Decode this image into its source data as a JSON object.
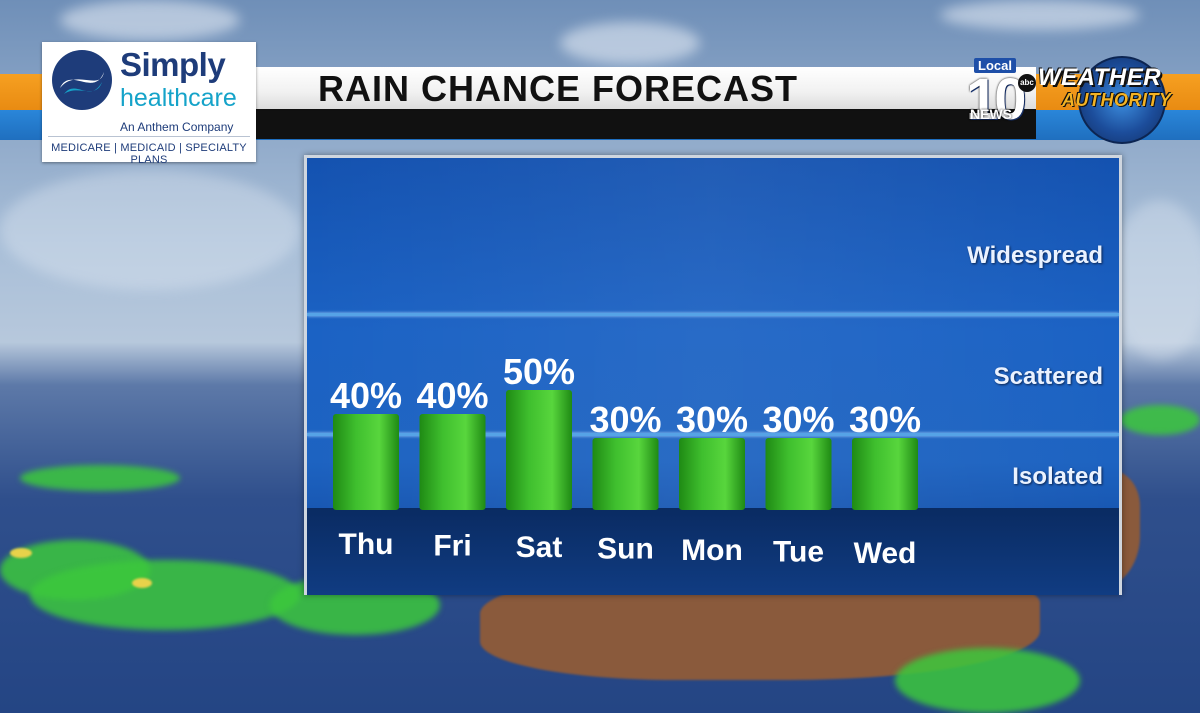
{
  "title": "RAIN CHANCE FORECAST",
  "sponsor": {
    "name_top": "Simply",
    "name_bottom": "healthcare",
    "tagline": "An Anthem Company",
    "plans": "MEDICARE | MEDICAID | SPECIALTY PLANS"
  },
  "station": {
    "local": "Local",
    "number": "10",
    "network": "abc",
    "news": "NEWS",
    "brand_line1": "WEATHER",
    "brand_line2": "AUTHORITY"
  },
  "colors": {
    "bar_green": "#3fbf2e",
    "panel_blue": "#1b62c4",
    "title_orange": "#f6a021"
  },
  "chart_data": {
    "type": "bar",
    "title": "RAIN CHANCE FORECAST",
    "categories": [
      "Thu",
      "Fri",
      "Sat",
      "Sun",
      "Mon",
      "Tue",
      "Wed"
    ],
    "values": [
      40,
      40,
      50,
      30,
      30,
      30,
      30
    ],
    "value_labels": [
      "40%",
      "40%",
      "50%",
      "30%",
      "30%",
      "30%",
      "30%"
    ],
    "unit": "%",
    "ylim": [
      0,
      100
    ],
    "zones": [
      {
        "label": "Isolated",
        "from": 0,
        "to": 30
      },
      {
        "label": "Scattered",
        "from": 30,
        "to": 60
      },
      {
        "label": "Widespread",
        "from": 60,
        "to": 100
      }
    ],
    "grid": false,
    "legend": "none"
  }
}
